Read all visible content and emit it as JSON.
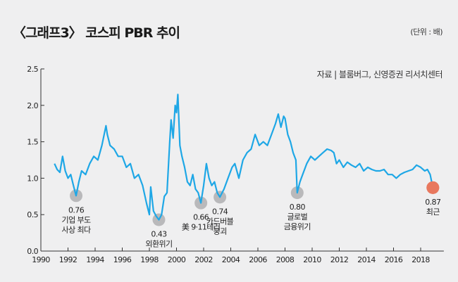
{
  "chart_data": {
    "type": "line",
    "title": "〈그래프3〉 코스피 PBR 추이",
    "unit": "(단위 : 배)",
    "source": "자료 | 블룸버그, 신영증권 리서치센터",
    "xlabel": "",
    "ylabel": "",
    "xlim": [
      1990,
      2019.5
    ],
    "ylim": [
      0,
      2.5
    ],
    "y_ticks": [
      "0.0",
      "0.5",
      "1.0",
      "1.5",
      "2.0",
      "2.5"
    ],
    "x_ticks": [
      "1990",
      "1992",
      "1994",
      "1996",
      "1998",
      "2000",
      "2002",
      "2004",
      "2006",
      "2008",
      "2010",
      "2012",
      "2014",
      "2016",
      "2018"
    ],
    "line_color": "#1ea7e6",
    "series": [
      {
        "name": "코스피 PBR",
        "x": [
          1991.0,
          1991.2,
          1991.4,
          1991.6,
          1991.8,
          1992.0,
          1992.2,
          1992.4,
          1992.6,
          1992.8,
          1993.0,
          1993.3,
          1993.6,
          1993.9,
          1994.2,
          1994.5,
          1994.8,
          1994.9,
          1995.1,
          1995.4,
          1995.7,
          1996.0,
          1996.3,
          1996.6,
          1996.9,
          1997.2,
          1997.5,
          1997.8,
          1998.0,
          1998.1,
          1998.3,
          1998.5,
          1998.7,
          1998.9,
          1999.1,
          1999.3,
          1999.5,
          1999.6,
          1999.75,
          1999.9,
          2000.0,
          2000.1,
          2000.25,
          2000.4,
          2000.6,
          2000.8,
          2001.0,
          2001.2,
          2001.4,
          2001.6,
          2001.8,
          2002.0,
          2002.2,
          2002.4,
          2002.6,
          2002.8,
          2003.0,
          2003.2,
          2003.5,
          2003.8,
          2004.1,
          2004.3,
          2004.6,
          2004.9,
          2005.2,
          2005.5,
          2005.8,
          2006.1,
          2006.4,
          2006.7,
          2007.0,
          2007.3,
          2007.5,
          2007.7,
          2007.9,
          2008.0,
          2008.2,
          2008.4,
          2008.6,
          2008.8,
          2008.9,
          2009.1,
          2009.3,
          2009.6,
          2009.9,
          2010.2,
          2010.5,
          2010.8,
          2011.1,
          2011.4,
          2011.6,
          2011.8,
          2012.0,
          2012.3,
          2012.6,
          2012.9,
          2013.2,
          2013.5,
          2013.8,
          2014.1,
          2014.4,
          2014.7,
          2015.0,
          2015.3,
          2015.6,
          2015.9,
          2016.2,
          2016.5,
          2016.8,
          2017.1,
          2017.4,
          2017.7,
          2018.0,
          2018.3,
          2018.5,
          2018.7,
          2018.9
        ],
        "values": [
          1.2,
          1.12,
          1.08,
          1.3,
          1.1,
          1.0,
          1.05,
          0.9,
          0.76,
          0.95,
          1.1,
          1.05,
          1.2,
          1.3,
          1.25,
          1.45,
          1.72,
          1.6,
          1.45,
          1.4,
          1.3,
          1.3,
          1.15,
          1.2,
          1.0,
          1.05,
          0.9,
          0.65,
          0.5,
          0.88,
          0.55,
          0.48,
          0.43,
          0.5,
          0.75,
          0.8,
          1.5,
          1.8,
          1.55,
          2.0,
          1.9,
          2.15,
          1.45,
          1.3,
          1.15,
          0.95,
          0.9,
          1.05,
          0.85,
          0.8,
          0.66,
          0.9,
          1.2,
          1.0,
          0.9,
          0.95,
          0.8,
          0.74,
          0.85,
          1.0,
          1.15,
          1.2,
          1.0,
          1.25,
          1.35,
          1.4,
          1.6,
          1.45,
          1.5,
          1.45,
          1.6,
          1.75,
          1.88,
          1.7,
          1.85,
          1.82,
          1.6,
          1.5,
          1.35,
          1.25,
          0.8,
          0.95,
          1.05,
          1.2,
          1.3,
          1.25,
          1.3,
          1.35,
          1.4,
          1.38,
          1.35,
          1.2,
          1.25,
          1.15,
          1.22,
          1.18,
          1.15,
          1.2,
          1.1,
          1.15,
          1.12,
          1.1,
          1.1,
          1.12,
          1.05,
          1.05,
          1.0,
          1.05,
          1.08,
          1.1,
          1.12,
          1.18,
          1.15,
          1.1,
          1.12,
          1.05,
          0.87
        ]
      }
    ],
    "annotations": [
      {
        "x": 1992.6,
        "y": 0.76,
        "value": "0.76",
        "lines": [
          "기업 부도",
          "사상 최다"
        ],
        "color": "#b9b9bb"
      },
      {
        "x": 1998.7,
        "y": 0.43,
        "value": "0.43",
        "lines": [
          "외환위기"
        ],
        "color": "#b9b9bb"
      },
      {
        "x": 2001.8,
        "y": 0.66,
        "value": "0.66",
        "lines": [
          "美 9·11테러"
        ],
        "color": "#b9b9bb"
      },
      {
        "x": 2003.2,
        "y": 0.74,
        "value": "0.74",
        "lines": [
          "카드버블",
          "붕괴"
        ],
        "color": "#b9b9bb"
      },
      {
        "x": 2008.9,
        "y": 0.8,
        "value": "0.80",
        "lines": [
          "글로벌",
          "금융위기"
        ],
        "color": "#b9b9bb"
      },
      {
        "x": 2018.9,
        "y": 0.87,
        "value": "0.87",
        "lines": [
          "최근"
        ],
        "color": "#e8785e"
      }
    ]
  }
}
